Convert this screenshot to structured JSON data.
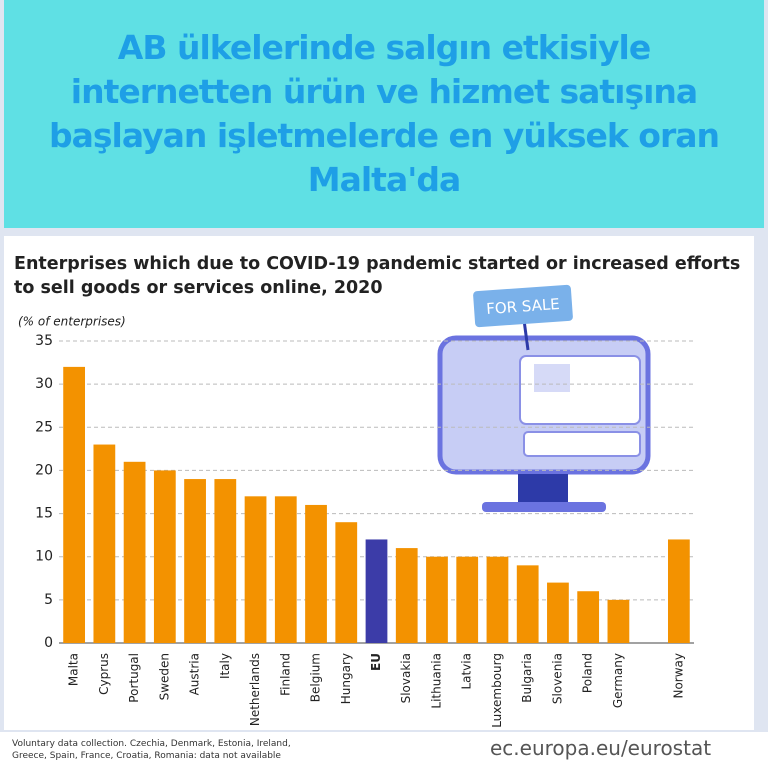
{
  "header": {
    "title": "AB ülkelerinde salgın etkisiyle internetten ürün ve hizmet satışına başlayan işletmelerde en yüksek oran Malta'da"
  },
  "chart_data": {
    "type": "bar",
    "title": "Enterprises which due to COVID-19 pandemic started or increased efforts to sell goods or services online, 2020",
    "y_label": "(% of enterprises)",
    "categories": [
      "Malta",
      "Cyprus",
      "Portugal",
      "Sweden",
      "Austria",
      "Italy",
      "Netherlands",
      "Finland",
      "Belgium",
      "Hungary",
      "EU",
      "Slovakia",
      "Lithuania",
      "Latvia",
      "Luxembourg",
      "Bulgaria",
      "Slovenia",
      "Poland",
      "Germany",
      null,
      "Norway"
    ],
    "values": [
      32,
      23,
      21,
      20,
      19,
      19,
      17,
      17,
      16,
      14,
      12,
      11,
      10,
      10,
      10,
      9,
      7,
      6,
      5,
      null,
      12
    ],
    "colors": [
      "#f39200",
      "#f39200",
      "#f39200",
      "#f39200",
      "#f39200",
      "#f39200",
      "#f39200",
      "#f39200",
      "#f39200",
      "#f39200",
      "#3c3ca8",
      "#f39200",
      "#f39200",
      "#f39200",
      "#f39200",
      "#f39200",
      "#f39200",
      "#f39200",
      "#f39200",
      null,
      "#f39200"
    ],
    "ylim": [
      0,
      35
    ],
    "yticks": [
      0,
      5,
      10,
      15,
      20,
      25,
      30,
      35
    ],
    "grid": true,
    "illustration_label": "FOR SALE",
    "footnote": "Voluntary data collection. Czechia, Denmark, Estonia, Ireland, Greece, Spain, France, Croatia, Romania: data not available",
    "source": "ec.europa.eu/eurostat"
  }
}
